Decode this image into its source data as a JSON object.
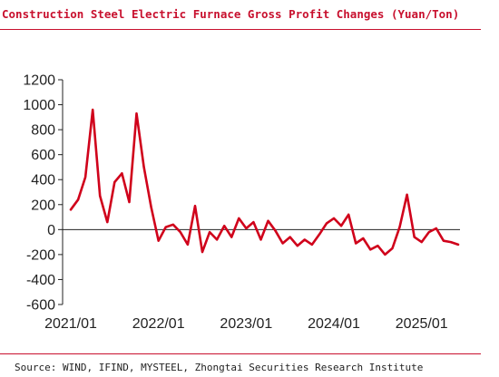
{
  "header": {
    "title": "Construction Steel Electric Furnace Gross Profit Changes (Yuan/Ton)"
  },
  "footer": {
    "source": "Source: WIND, IFIND, MYSTEEL, Zhongtai Securities Research Institute"
  },
  "colors": {
    "accent": "#c8102e",
    "line": "#d0021b",
    "axis": "#222222"
  },
  "chart_data": {
    "type": "line",
    "title": "Construction Steel Electric Furnace Gross Profit Changes (Yuan/Ton)",
    "xlabel": "",
    "ylabel": "",
    "ylim": [
      -600,
      1200
    ],
    "xlim": [
      "2021/01",
      "2025/06"
    ],
    "yticks": [
      -600,
      -400,
      -200,
      0,
      200,
      400,
      600,
      800,
      1000,
      1200
    ],
    "xticks": [
      "2021/01",
      "2022/01",
      "2023/01",
      "2024/01",
      "2025/01"
    ],
    "grid": false,
    "legend": "none",
    "series": [
      {
        "name": "",
        "x": [
          "2021/01",
          "2021/02",
          "2021/03",
          "2021/04",
          "2021/05",
          "2021/06",
          "2021/07",
          "2021/08",
          "2021/09",
          "2021/10",
          "2021/11",
          "2021/12",
          "2022/01",
          "2022/02",
          "2022/03",
          "2022/04",
          "2022/05",
          "2022/06",
          "2022/07",
          "2022/08",
          "2022/09",
          "2022/10",
          "2022/11",
          "2022/12",
          "2023/01",
          "2023/02",
          "2023/03",
          "2023/04",
          "2023/05",
          "2023/06",
          "2023/07",
          "2023/08",
          "2023/09",
          "2023/10",
          "2023/11",
          "2023/12",
          "2024/01",
          "2024/02",
          "2024/03",
          "2024/04",
          "2024/05",
          "2024/06",
          "2024/07",
          "2024/08",
          "2024/09",
          "2024/10",
          "2024/11",
          "2024/12",
          "2025/01",
          "2025/02",
          "2025/03",
          "2025/04",
          "2025/05",
          "2025/06"
        ],
        "values": [
          160,
          240,
          420,
          960,
          270,
          60,
          380,
          450,
          220,
          930,
          500,
          180,
          -90,
          20,
          40,
          -20,
          -120,
          190,
          -180,
          -20,
          -80,
          30,
          -60,
          90,
          10,
          60,
          -80,
          70,
          -10,
          -110,
          -60,
          -130,
          -80,
          -120,
          -40,
          50,
          90,
          30,
          120,
          -110,
          -70,
          -160,
          -130,
          -200,
          -150,
          20,
          280,
          -60,
          -100,
          -20,
          10,
          -90,
          -100,
          -120
        ]
      }
    ]
  }
}
